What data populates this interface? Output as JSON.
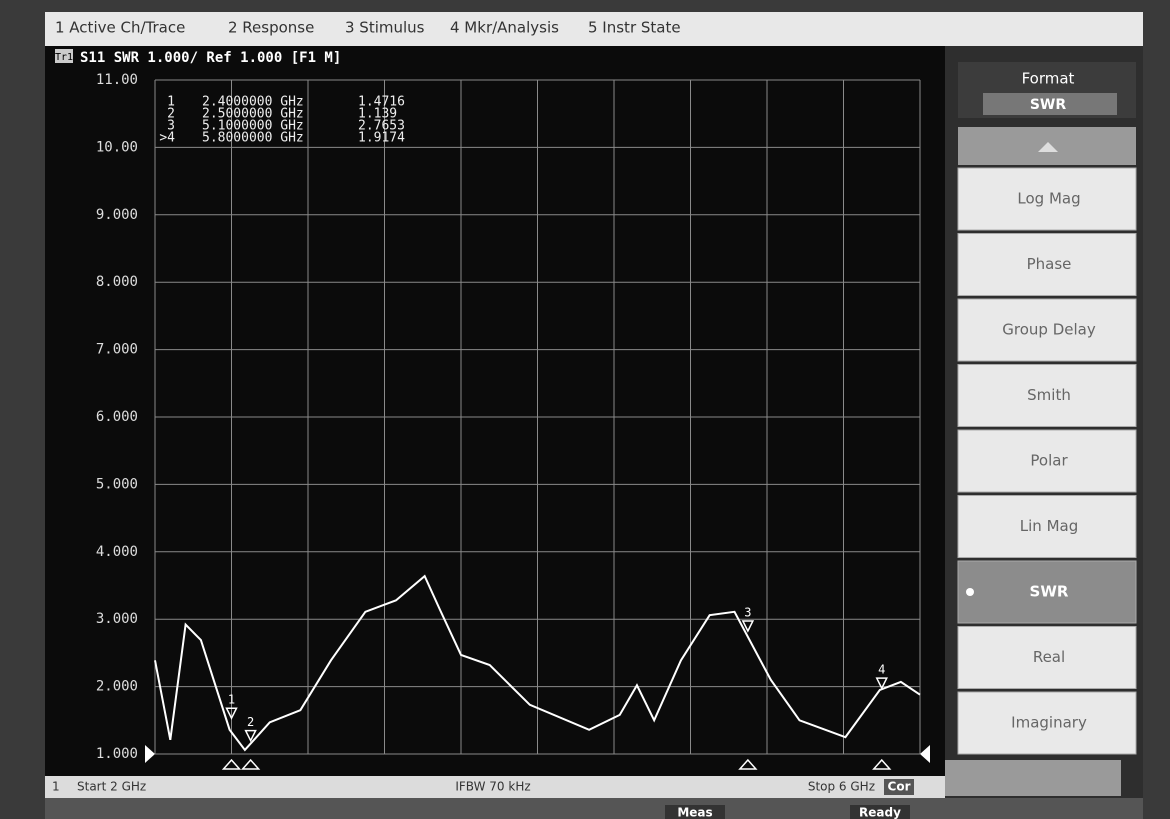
{
  "menu_bar": [
    "1 Active Ch/Trace",
    "2 Response",
    "3 Stimulus",
    "4 Mkr/Analysis",
    "5 Instr State"
  ],
  "trace_label": "Tr1",
  "trace_header": "S11 SWR 1.000/ Ref 1.000 [F1 M]",
  "markers": [
    {
      "row_label": "1",
      "id": "1",
      "freq": 2.4,
      "freq_label": "2.4000000 GHz",
      "value": 1.4716
    },
    {
      "row_label": "2",
      "id": "2",
      "freq": 2.5,
      "freq_label": "2.5000000 GHz",
      "value": 1.139
    },
    {
      "row_label": "3",
      "id": "3",
      "freq": 5.1,
      "freq_label": "5.1000000 GHz",
      "value": 2.7653
    },
    {
      "row_label": ">4",
      "id": "4",
      "freq": 5.8,
      "freq_label": "5.8000000 GHz",
      "value": 1.9174
    }
  ],
  "chart_data": {
    "type": "line",
    "color": "#ffffff",
    "grid": true,
    "x": [
      2.0,
      2.08,
      2.16,
      2.24,
      2.39,
      2.47,
      2.6,
      2.76,
      2.92,
      3.1,
      3.26,
      3.41,
      3.49,
      3.6,
      3.75,
      3.96,
      4.27,
      4.43,
      4.52,
      4.61,
      4.75,
      4.9,
      5.03,
      5.22,
      5.37,
      5.61,
      5.79,
      5.9,
      6.0
    ],
    "values": [
      2.39,
      1.21,
      2.92,
      2.69,
      1.36,
      1.06,
      1.47,
      1.65,
      2.39,
      3.11,
      3.28,
      3.64,
      3.14,
      2.47,
      2.32,
      1.73,
      1.36,
      1.58,
      2.02,
      1.5,
      2.39,
      3.06,
      3.11,
      2.1,
      1.5,
      1.25,
      1.95,
      2.07,
      1.88
    ],
    "xlim": [
      2,
      6
    ],
    "ylim": [
      1,
      11
    ],
    "yticks": [
      {
        "value": 1,
        "label": "1.000"
      },
      {
        "value": 2,
        "label": "2.000"
      },
      {
        "value": 3,
        "label": "3.000"
      },
      {
        "value": 4,
        "label": "4.000"
      },
      {
        "value": 5,
        "label": "5.000"
      },
      {
        "value": 6,
        "label": "6.000"
      },
      {
        "value": 7,
        "label": "7.000"
      },
      {
        "value": 8,
        "label": "8.000"
      },
      {
        "value": 9,
        "label": "9.000"
      },
      {
        "value": 10,
        "label": "10.00"
      },
      {
        "value": 11,
        "label": "11.00"
      }
    ]
  },
  "footer": {
    "channel": "1",
    "start": "Start 2 GHz",
    "ifbw": "IFBW 70 kHz",
    "stop": "Stop 6 GHz",
    "cor": "Cor"
  },
  "status": [
    "Meas",
    "Ready"
  ],
  "softkeys": {
    "title": "Format",
    "current": "SWR",
    "selected": 6,
    "items": [
      "Log Mag",
      "Phase",
      "Group Delay",
      "Smith",
      "Polar",
      "Lin Mag",
      "SWR",
      "Real",
      "Imaginary"
    ]
  }
}
